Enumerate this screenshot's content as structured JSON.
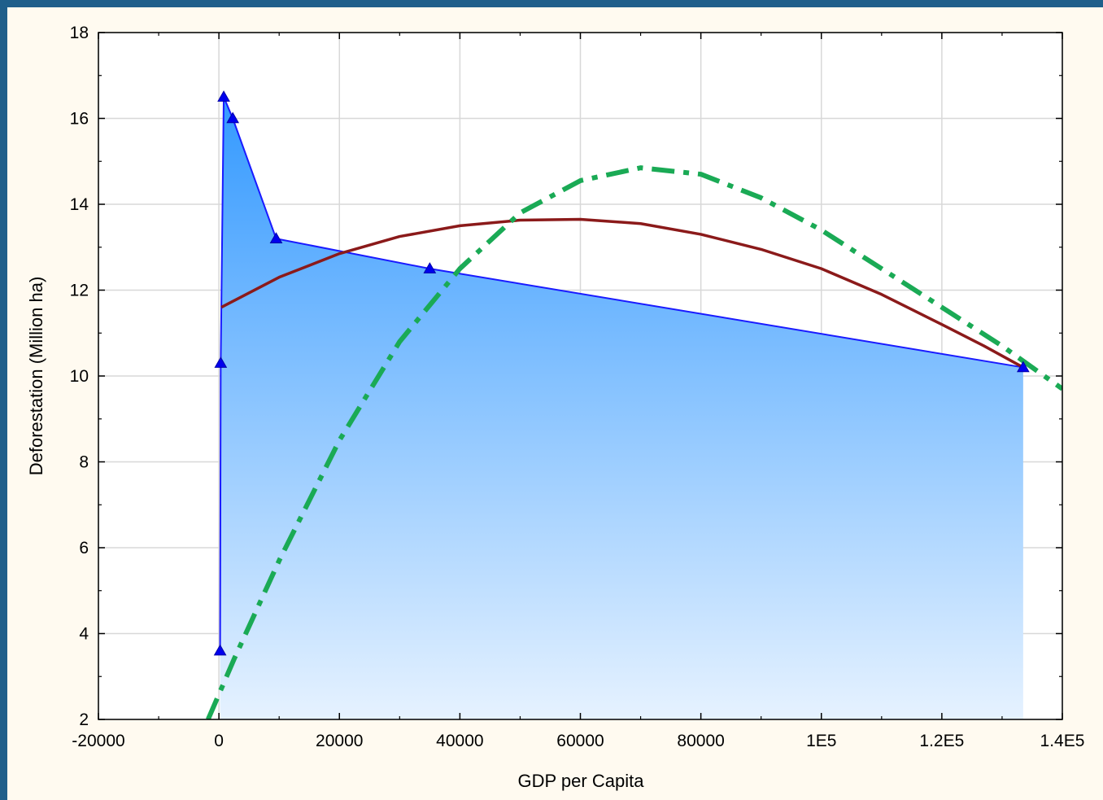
{
  "chart_data": {
    "type": "area",
    "title": "",
    "xlabel": "GDP per Capita",
    "ylabel": "Deforestation (Million ha)",
    "xlim": [
      -20000,
      140000
    ],
    "ylim": [
      2,
      18
    ],
    "grid": true,
    "x_ticks": [
      {
        "value": -20000,
        "label": "-20000"
      },
      {
        "value": 0,
        "label": "0"
      },
      {
        "value": 20000,
        "label": "20000"
      },
      {
        "value": 40000,
        "label": "40000"
      },
      {
        "value": 60000,
        "label": "60000"
      },
      {
        "value": 80000,
        "label": "80000"
      },
      {
        "value": 100000,
        "label": "1E5"
      },
      {
        "value": 120000,
        "label": "1.2E5"
      },
      {
        "value": 140000,
        "label": "1.4E5"
      }
    ],
    "y_ticks": [
      {
        "value": 2,
        "label": "2"
      },
      {
        "value": 4,
        "label": "4"
      },
      {
        "value": 6,
        "label": "6"
      },
      {
        "value": 8,
        "label": "8"
      },
      {
        "value": 10,
        "label": "10"
      },
      {
        "value": 12,
        "label": "12"
      },
      {
        "value": 14,
        "label": "14"
      },
      {
        "value": 16,
        "label": "16"
      },
      {
        "value": 18,
        "label": "18"
      }
    ],
    "series": [
      {
        "style": "area with triangle markers",
        "color": "#1a1aff",
        "fill_top": "#3399ff",
        "fill_bottom": "#e6f2ff",
        "points": [
          {
            "x": 200,
            "y": 3.6
          },
          {
            "x": 300,
            "y": 10.3
          },
          {
            "x": 800,
            "y": 16.5
          },
          {
            "x": 2300,
            "y": 16.0
          },
          {
            "x": 9500,
            "y": 13.2
          },
          {
            "x": 35000,
            "y": 12.5
          },
          {
            "x": 133500,
            "y": 10.2
          }
        ]
      },
      {
        "style": "solid fitted curve",
        "color": "#8b1a1a",
        "points": [
          {
            "x": 400,
            "y": 11.6
          },
          {
            "x": 10000,
            "y": 12.3
          },
          {
            "x": 20000,
            "y": 12.85
          },
          {
            "x": 30000,
            "y": 13.25
          },
          {
            "x": 40000,
            "y": 13.5
          },
          {
            "x": 50000,
            "y": 13.63
          },
          {
            "x": 60000,
            "y": 13.65
          },
          {
            "x": 70000,
            "y": 13.55
          },
          {
            "x": 80000,
            "y": 13.3
          },
          {
            "x": 90000,
            "y": 12.95
          },
          {
            "x": 100000,
            "y": 12.5
          },
          {
            "x": 110000,
            "y": 11.9
          },
          {
            "x": 120000,
            "y": 11.2
          },
          {
            "x": 127000,
            "y": 10.7
          },
          {
            "x": 133500,
            "y": 10.2
          }
        ]
      },
      {
        "style": "dash-dot fitted curve",
        "color": "#1aaa55",
        "points": [
          {
            "x": -1800,
            "y": 2.0
          },
          {
            "x": 2500,
            "y": 3.4
          },
          {
            "x": 10000,
            "y": 5.7
          },
          {
            "x": 20000,
            "y": 8.5
          },
          {
            "x": 30000,
            "y": 10.8
          },
          {
            "x": 40000,
            "y": 12.5
          },
          {
            "x": 50000,
            "y": 13.8
          },
          {
            "x": 60000,
            "y": 14.55
          },
          {
            "x": 70000,
            "y": 14.85
          },
          {
            "x": 80000,
            "y": 14.7
          },
          {
            "x": 90000,
            "y": 14.15
          },
          {
            "x": 100000,
            "y": 13.4
          },
          {
            "x": 110000,
            "y": 12.5
          },
          {
            "x": 120000,
            "y": 11.6
          },
          {
            "x": 130000,
            "y": 10.7
          },
          {
            "x": 140000,
            "y": 9.7
          }
        ]
      }
    ]
  }
}
